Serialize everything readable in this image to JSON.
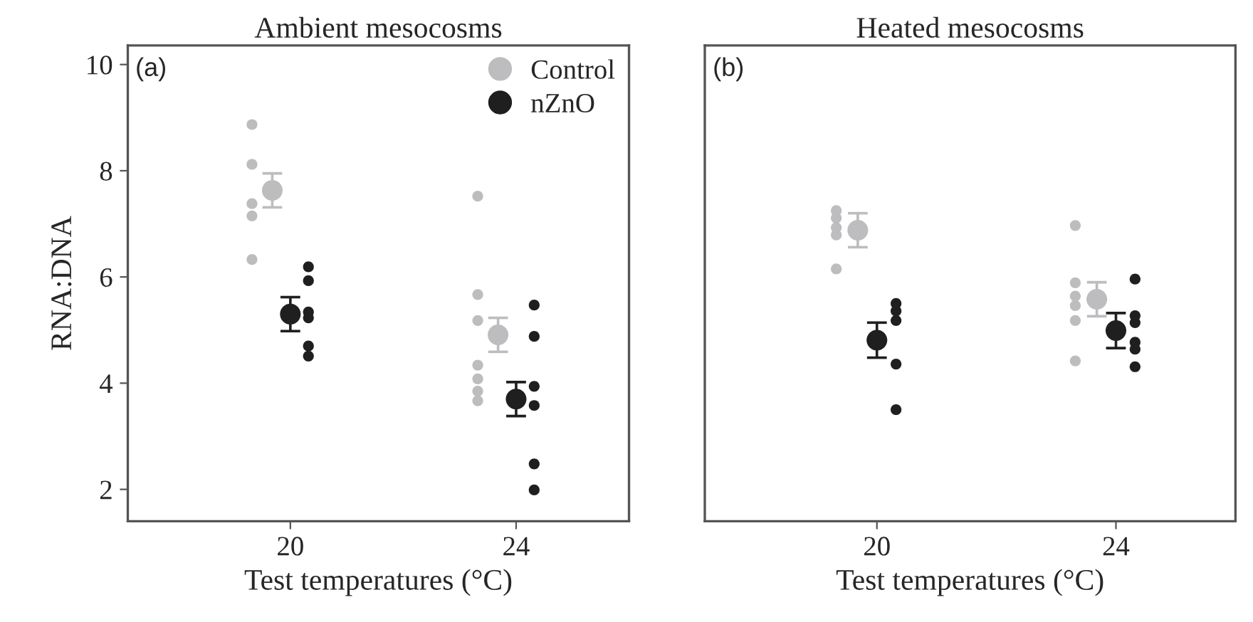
{
  "chart_data": [
    {
      "type": "scatter",
      "title": "Ambient mesocosms",
      "xlabel": "Test temperatures (°C)",
      "ylabel": "RNA:DNA",
      "annotations": [
        "(a)"
      ],
      "categories": [
        "20",
        "24"
      ],
      "ylim": [
        1.4,
        10.36
      ],
      "yticks": [
        2,
        4,
        6,
        8,
        10
      ],
      "grid": false,
      "legend": "top right",
      "marker": "circle",
      "series": [
        {
          "color": "#bdbdbf",
          "x": [
            "20",
            "20",
            "20",
            "20",
            "20",
            "24",
            "24",
            "24",
            "24",
            "24",
            "24",
            "24"
          ],
          "values": [
            8.87,
            8.12,
            7.38,
            7.15,
            6.33,
            7.52,
            5.67,
            5.18,
            4.34,
            4.08,
            3.85,
            3.67
          ]
        },
        {
          "name": "Control",
          "color": "#bdbdbf",
          "x": [
            "20",
            "24"
          ],
          "values": [
            7.63,
            4.91
          ],
          "errors": [
            0.32,
            0.32
          ]
        },
        {
          "name": "nZnO",
          "color": "#1f1f1f",
          "x": [
            "20",
            "24"
          ],
          "values": [
            5.3,
            3.7
          ],
          "errors": [
            0.32,
            0.32
          ]
        },
        {
          "color": "#1f1f1f",
          "x": [
            "20",
            "20",
            "20",
            "20",
            "20",
            "20",
            "24",
            "24",
            "24",
            "24",
            "24",
            "24"
          ],
          "values": [
            6.19,
            5.93,
            5.34,
            5.23,
            4.7,
            4.51,
            5.47,
            4.88,
            3.94,
            3.58,
            2.48,
            1.99
          ]
        }
      ]
    },
    {
      "type": "scatter",
      "title": "Heated mesocosms",
      "xlabel": "Test temperatures (°C)",
      "annotations": [
        "(b)"
      ],
      "categories": [
        "20",
        "24"
      ],
      "ylim": [
        1.4,
        10.36
      ],
      "yticks": [
        2,
        4,
        6,
        8,
        10
      ],
      "tick_labels": "x",
      "grid": false,
      "marker": "circle",
      "series": [
        {
          "color": "#bdbdbf",
          "x": [
            "20",
            "20",
            "20",
            "20",
            "20",
            "24",
            "24",
            "24",
            "24",
            "24",
            "24"
          ],
          "values": [
            7.25,
            7.11,
            6.93,
            6.79,
            6.15,
            6.97,
            5.89,
            5.64,
            5.46,
            5.18,
            4.42
          ]
        },
        {
          "color": "#bdbdbf",
          "x": [
            "20",
            "24"
          ],
          "values": [
            6.88,
            5.58
          ],
          "errors": [
            0.32,
            0.32
          ]
        },
        {
          "color": "#1f1f1f",
          "x": [
            "20",
            "24"
          ],
          "values": [
            4.81,
            4.99
          ],
          "errors": [
            0.33,
            0.33
          ]
        },
        {
          "color": "#1f1f1f",
          "x": [
            "20",
            "20",
            "20",
            "20",
            "20",
            "24",
            "24",
            "24",
            "24",
            "24",
            "24"
          ],
          "values": [
            5.5,
            5.36,
            5.18,
            4.36,
            3.5,
            5.96,
            5.27,
            5.14,
            4.77,
            4.64,
            4.31
          ]
        }
      ]
    }
  ]
}
